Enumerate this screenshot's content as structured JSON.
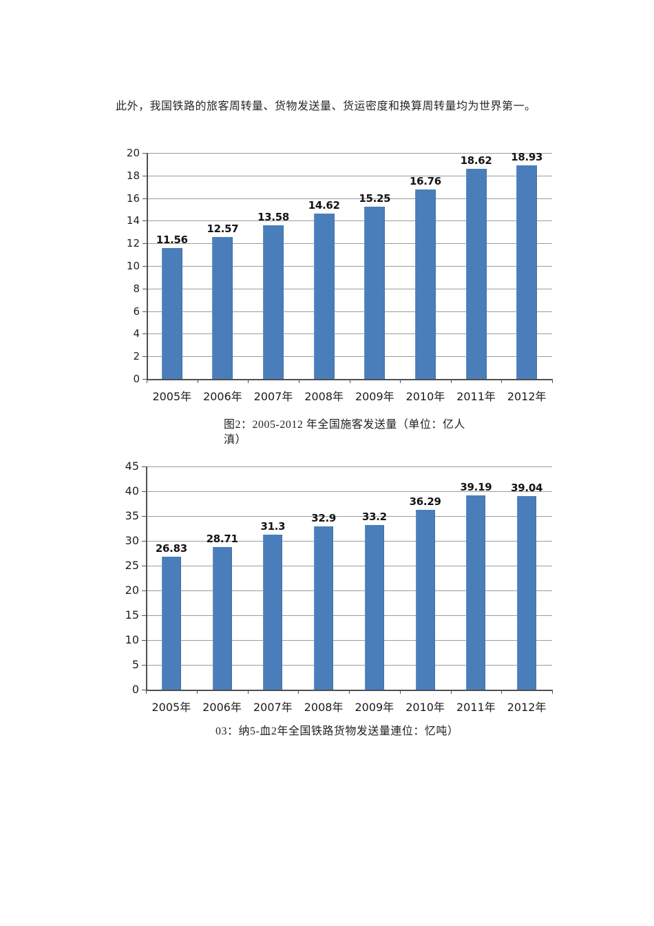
{
  "page": {
    "intro_text": "此外，我国铁路的旅客周转量、货物发送量、货运密度和换算周转量均为世界第一。"
  },
  "colors": {
    "bar": "#4a7ebb",
    "gridline": "#9b9b9b",
    "axis": "#4f4f4f",
    "text": "#1c1c1c"
  },
  "chart_data": [
    {
      "type": "bar",
      "name": "passenger-volume",
      "title": "图2：2005-2012 年全国施客发送量（单位：亿人滇）",
      "categories": [
        "2005年",
        "2006年",
        "2007年",
        "2008年",
        "2009年",
        "2010年",
        "2011年",
        "2012年"
      ],
      "values": [
        11.56,
        12.57,
        13.58,
        14.62,
        15.25,
        16.76,
        18.62,
        18.93
      ],
      "value_labels": [
        "11.56",
        "12.57",
        "13.58",
        "14.62",
        "15.25",
        "16.76",
        "18.62",
        "18.93"
      ],
      "ylim": [
        0,
        20
      ],
      "ytick_step": 2,
      "grid": true,
      "legend": "none",
      "bar_color": "#4a7ebb",
      "caption_lines": [
        "图2：2005-2012 年全国施客发送量（单位：亿人",
        "滇）"
      ]
    },
    {
      "type": "bar",
      "name": "freight-volume",
      "title": "03：纳5-血2年全国铁路货物发送量連位：忆吨）",
      "categories": [
        "2005年",
        "2006年",
        "2007年",
        "2008年",
        "2009年",
        "2010年",
        "2011年",
        "2012年"
      ],
      "values": [
        26.83,
        28.71,
        31.3,
        32.9,
        33.2,
        36.29,
        39.19,
        39.04
      ],
      "value_labels": [
        "26.83",
        "28.71",
        "31.3",
        "32.9",
        "33.2",
        "36.29",
        "39.19",
        "39.04"
      ],
      "ylim": [
        0,
        45
      ],
      "ytick_step": 5,
      "grid": true,
      "legend": "none",
      "bar_color": "#4a7ebb",
      "caption_lines": [
        "03：纳5-血2年全国铁路货物发送量連位：忆吨）"
      ]
    }
  ]
}
